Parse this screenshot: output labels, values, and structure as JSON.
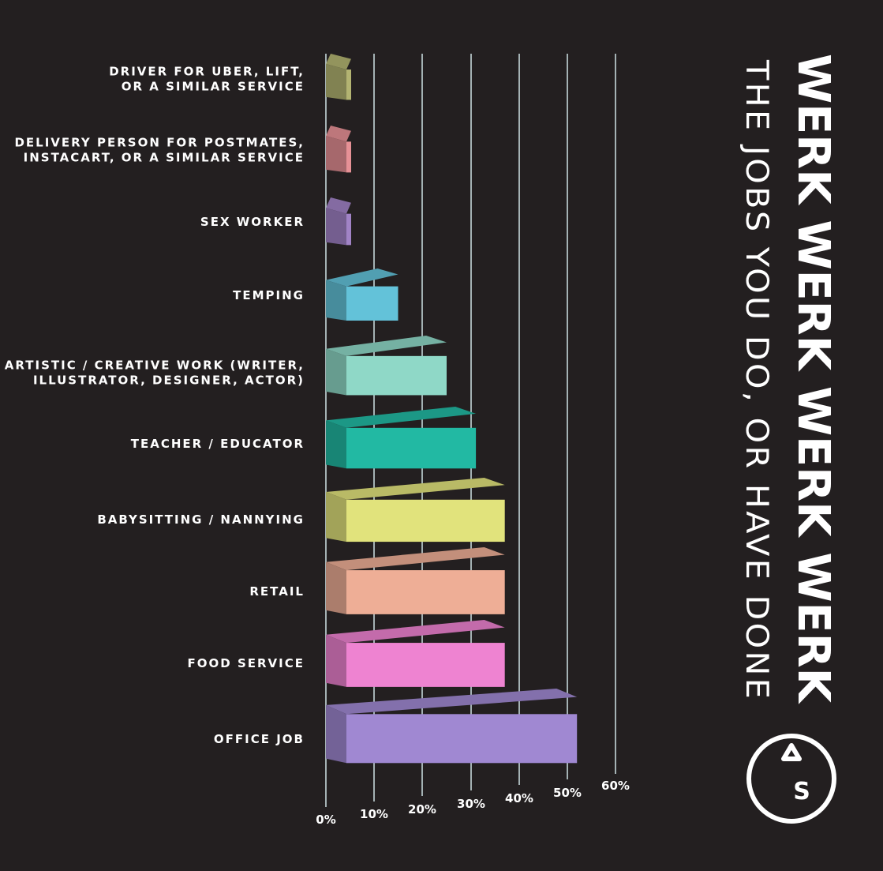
{
  "chart_data": {
    "type": "bar",
    "orientation": "horizontal",
    "title": "WERK WERK WERK WERK",
    "subtitle": "THE JOBS YOU DO, OR HAVE DONE",
    "categories": [
      [
        "DRIVER FOR UBER, LIFT,",
        "OR A SIMILAR SERVICE"
      ],
      [
        "DELIVERY PERSON FOR POSTMATES,",
        "INSTACART, OR A SIMILAR SERVICE"
      ],
      [
        "SEX WORKER"
      ],
      [
        "TEMPING"
      ],
      [
        "ARTISTIC / CREATIVE WORK (WRITER,",
        "ILLUSTRATOR, DESIGNER, ACTOR)"
      ],
      [
        "TEACHER / EDUCATOR"
      ],
      [
        "BABYSITTING / NANNYING"
      ],
      [
        "RETAIL"
      ],
      [
        "FOOD SERVICE"
      ],
      [
        "OFFICE JOB"
      ]
    ],
    "values": [
      0.5,
      1.5,
      2,
      15,
      25,
      31,
      37,
      37,
      37,
      52
    ],
    "colors": [
      "#b3b472",
      "#e69196",
      "#a183c6",
      "#63c2d9",
      "#8fd8c7",
      "#22b9a3",
      "#e1e37c",
      "#eeae96",
      "#ee83d1",
      "#a088d2"
    ],
    "xlim": [
      0,
      60
    ],
    "ticks": [
      "0%",
      "10%",
      "20%",
      "30%",
      "40%",
      "50%",
      "60%"
    ],
    "grid": true,
    "logo": "AS"
  }
}
